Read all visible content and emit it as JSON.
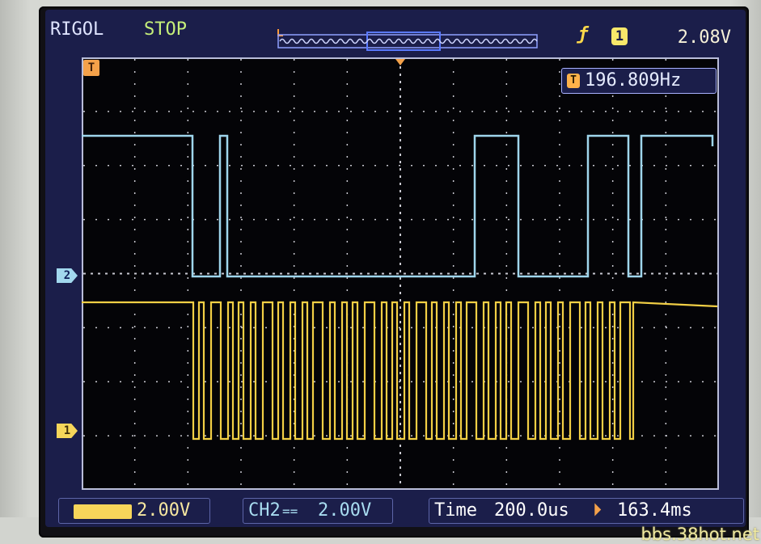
{
  "scope": {
    "brand": "RIGOL",
    "run_state": "STOP",
    "trigger_level": "2.08V",
    "trigger_source_number": "1",
    "trigger_marker": "T",
    "frequency_readout": "196.809Hz",
    "frequency_icon": "T"
  },
  "channels": {
    "ch1_marker": "1",
    "ch2_marker": "2",
    "ch1_scale": "2.00V",
    "ch2_label": "CH2",
    "ch2_coupling": "==",
    "ch2_scale": "2.00V"
  },
  "timebase": {
    "label": "Time",
    "scale": "200.0us",
    "offset": "163.4ms"
  },
  "watermark": "bbs.38hot.net",
  "colors": {
    "ch1": "#f2cf45",
    "ch2": "#9fd6ec",
    "grid": "#c8c8d0",
    "screen_bg": "#1b1e4a"
  },
  "icons": [
    "trigger-edge-icon",
    "trigger-source-icon",
    "frequency-counter-icon",
    "ch1-ground-marker-icon",
    "ch2-ground-marker-icon",
    "trigger-position-marker-icon",
    "horizontal-offset-icon",
    "memory-depth-strip"
  ]
}
